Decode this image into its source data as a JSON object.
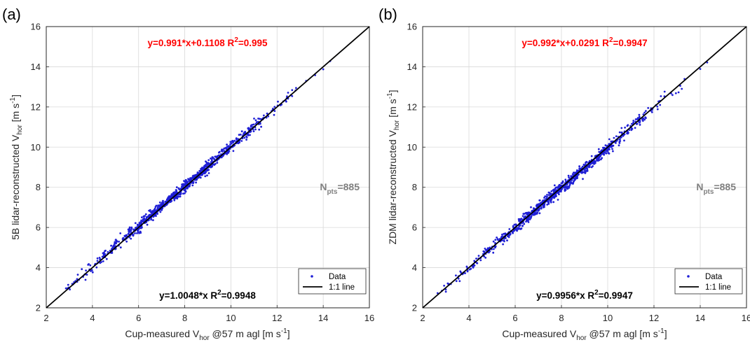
{
  "colors": {
    "data_points": "#1f1fd6",
    "reference_line": "#000000",
    "top_equation": "#ff0000",
    "npts_label": "#808080",
    "grid": "#d9d9d9",
    "axes": "#262626"
  },
  "chart_data": [
    {
      "type": "scatter",
      "panel_label": "(a)",
      "xlabel": {
        "prefix": "Cup-measured V",
        "sub": "hor",
        "suffix": " @57  m agl [m s",
        "sup": "-1",
        "end": "]"
      },
      "ylabel": {
        "prefix": "5B lidar-reconstructed V",
        "sub": "hor",
        "suffix": " [m s",
        "sup": "-1",
        "end": "]"
      },
      "xlim": [
        2,
        16
      ],
      "ylim": [
        2,
        16
      ],
      "xticks": [
        2,
        4,
        6,
        8,
        10,
        12,
        14,
        16
      ],
      "yticks": [
        2,
        4,
        6,
        8,
        10,
        12,
        14,
        16
      ],
      "grid": true,
      "fit_line": {
        "slope": 0.991,
        "intercept": 0.1108
      },
      "top_equation": {
        "main": "y=0.991*x+0.1108  R",
        "sup": "2",
        "end": "=0.995"
      },
      "bottom_equation": {
        "main": "y=1.0048*x  R",
        "sup": "2",
        "end": "=0.9948"
      },
      "npts": {
        "main": "N",
        "sub": "pts",
        "end": "=885"
      },
      "n_points": 885,
      "data_range": [
        2.8,
        14.3
      ],
      "legend": {
        "placement": "bottom-right",
        "entries": [
          "Data",
          "1:1 line"
        ]
      }
    },
    {
      "type": "scatter",
      "panel_label": "(b)",
      "xlabel": {
        "prefix": "Cup-measured V",
        "sub": "hor",
        "suffix": " @57  m agl [m s",
        "sup": "-1",
        "end": "]"
      },
      "ylabel": {
        "prefix": "ZDM lidar-reconstructed V",
        "sub": "hor",
        "suffix": " [m s",
        "sup": "-1",
        "end": "]"
      },
      "xlim": [
        2,
        16
      ],
      "ylim": [
        2,
        16
      ],
      "xticks": [
        2,
        4,
        6,
        8,
        10,
        12,
        14,
        16
      ],
      "yticks": [
        2,
        4,
        6,
        8,
        10,
        12,
        14,
        16
      ],
      "grid": true,
      "fit_line": {
        "slope": 0.992,
        "intercept": 0.0291
      },
      "top_equation": {
        "main": "y=0.992*x+0.0291  R",
        "sup": "2",
        "end": "=0.9947"
      },
      "bottom_equation": {
        "main": "y=0.9956*x  R",
        "sup": "2",
        "end": "=0.9947"
      },
      "npts": {
        "main": "N",
        "sub": "pts",
        "end": "=885"
      },
      "n_points": 885,
      "data_range": [
        2.6,
        14.3
      ],
      "legend": {
        "placement": "bottom-right",
        "entries": [
          "Data",
          "1:1 line"
        ]
      }
    }
  ]
}
